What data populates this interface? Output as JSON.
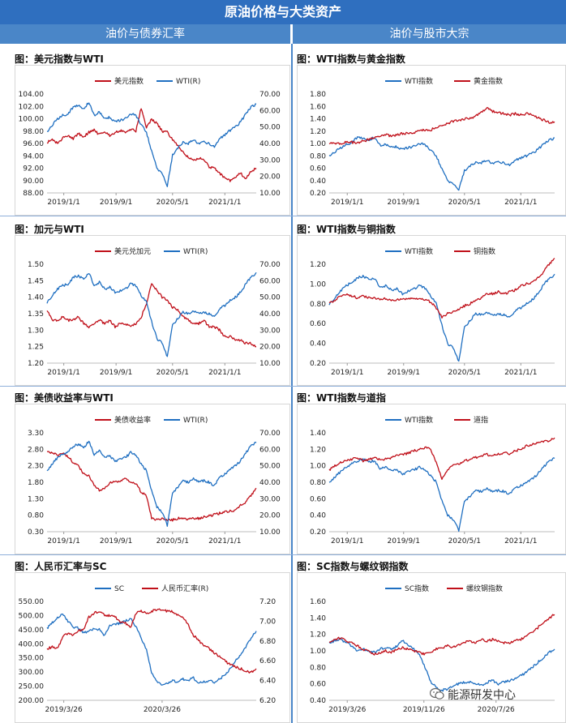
{
  "header": {
    "title": "原油价格与大类资产",
    "col_left": "油价与债券汇率",
    "col_right": "油价与股市大宗"
  },
  "watermark": "能源研发中心",
  "colors": {
    "red": "#c0101a",
    "blue": "#1f6fc1",
    "header": "#2f6fbf",
    "subheader": "#4a86c8"
  },
  "chart_data": [
    {
      "id": "c1",
      "type": "line",
      "title": "图：美元指数与WTI",
      "x_ticks": [
        "2019/1/1",
        "2019/9/1",
        "2020/5/1",
        "2021/1/1"
      ],
      "y_left_ticks": [
        "88.00",
        "90.00",
        "92.00",
        "94.00",
        "96.00",
        "98.00",
        "100.00",
        "102.00",
        "104.00"
      ],
      "y_right_ticks": [
        "10.00",
        "20.00",
        "30.00",
        "40.00",
        "50.00",
        "60.00",
        "70.00"
      ],
      "series": [
        {
          "name": "美元指数",
          "color": "red",
          "axis": "left",
          "values": [
            96.2,
            96.6,
            96.0,
            96.9,
            97.2,
            96.8,
            97.6,
            97.1,
            97.8,
            98.2,
            97.4,
            98.0,
            97.3,
            97.8,
            98.1,
            97.9,
            98.3,
            98.0,
            101.8,
            98.6,
            99.9,
            99.2,
            98.0,
            97.8,
            96.6,
            95.6,
            94.6,
            93.8,
            93.2,
            93.6,
            93.4,
            92.2,
            92.0,
            91.2,
            90.4,
            90.0,
            90.6,
            91.2,
            90.3,
            91.5,
            92.0
          ]
        },
        {
          "name": "WTI(R)",
          "color": "blue",
          "axis": "right",
          "values": [
            47,
            51,
            55,
            57,
            58,
            62,
            63,
            61,
            65,
            57,
            59,
            55,
            56,
            53,
            54,
            55,
            58,
            57,
            51,
            47,
            35,
            25,
            22,
            14,
            33,
            37,
            41,
            40,
            42,
            40,
            41,
            40,
            38,
            43,
            45,
            48,
            50,
            53,
            58,
            62,
            64
          ]
        }
      ],
      "legend": "top",
      "x_range": [
        0,
        40
      ]
    },
    {
      "id": "c2",
      "type": "line",
      "title": "图：WTI指数与黄金指数",
      "x_ticks": [
        "2019/1/1",
        "2019/9/1",
        "2020/5/1",
        "2021/1/1"
      ],
      "y_left_ticks": [
        "0.20",
        "0.40",
        "0.60",
        "0.80",
        "1.00",
        "1.20",
        "1.40",
        "1.60",
        "1.80"
      ],
      "series": [
        {
          "name": "WTI指数",
          "color": "blue",
          "axis": "left",
          "values": [
            0.8,
            0.86,
            0.93,
            0.98,
            1.02,
            1.1,
            1.08,
            1.05,
            1.1,
            0.97,
            0.98,
            0.94,
            0.95,
            0.9,
            0.93,
            0.95,
            1.0,
            0.98,
            0.88,
            0.8,
            0.58,
            0.4,
            0.35,
            0.25,
            0.56,
            0.63,
            0.7,
            0.69,
            0.72,
            0.68,
            0.7,
            0.69,
            0.65,
            0.73,
            0.76,
            0.8,
            0.84,
            0.9,
            0.99,
            1.05,
            1.09
          ]
        },
        {
          "name": "黄金指数",
          "color": "red",
          "axis": "left",
          "values": [
            1.0,
            1.0,
            1.0,
            1.02,
            1.02,
            1.0,
            1.04,
            1.06,
            1.1,
            1.12,
            1.14,
            1.12,
            1.14,
            1.16,
            1.16,
            1.18,
            1.2,
            1.22,
            1.22,
            1.26,
            1.28,
            1.32,
            1.36,
            1.37,
            1.4,
            1.4,
            1.44,
            1.5,
            1.58,
            1.52,
            1.5,
            1.48,
            1.46,
            1.48,
            1.46,
            1.48,
            1.46,
            1.42,
            1.38,
            1.34,
            1.35
          ]
        }
      ],
      "legend": "top",
      "x_range": [
        0,
        40
      ]
    },
    {
      "id": "c3",
      "type": "line",
      "title": "图：加元与WTI",
      "x_ticks": [
        "2019/1/1",
        "2019/9/1",
        "2020/5/1",
        "2021/1/1"
      ],
      "y_left_ticks": [
        "1.20",
        "1.25",
        "1.30",
        "1.35",
        "1.40",
        "1.45",
        "1.50"
      ],
      "y_right_ticks": [
        "10.00",
        "20.00",
        "30.00",
        "40.00",
        "50.00",
        "60.00",
        "70.00"
      ],
      "series": [
        {
          "name": "美元兑加元",
          "color": "red",
          "axis": "left",
          "values": [
            1.36,
            1.33,
            1.33,
            1.34,
            1.33,
            1.33,
            1.34,
            1.32,
            1.31,
            1.32,
            1.33,
            1.32,
            1.33,
            1.31,
            1.32,
            1.32,
            1.31,
            1.32,
            1.34,
            1.38,
            1.44,
            1.42,
            1.4,
            1.39,
            1.37,
            1.36,
            1.34,
            1.33,
            1.32,
            1.32,
            1.33,
            1.31,
            1.31,
            1.3,
            1.28,
            1.28,
            1.27,
            1.27,
            1.26,
            1.26,
            1.25
          ]
        },
        {
          "name": "WTI(R)",
          "color": "blue",
          "axis": "right",
          "values": [
            47,
            51,
            55,
            57,
            58,
            62,
            63,
            61,
            65,
            57,
            59,
            55,
            56,
            53,
            54,
            55,
            58,
            57,
            51,
            47,
            35,
            25,
            22,
            14,
            33,
            37,
            41,
            40,
            42,
            40,
            41,
            40,
            38,
            43,
            45,
            48,
            50,
            53,
            58,
            62,
            65
          ]
        }
      ],
      "legend": "top",
      "x_range": [
        0,
        40
      ]
    },
    {
      "id": "c4",
      "type": "line",
      "title": "图：WTI指数与铜指数",
      "x_ticks": [
        "2019/1/1",
        "2019/9/1",
        "2020/5/1",
        "2021/1/1"
      ],
      "y_left_ticks": [
        "0.20",
        "0.40",
        "0.60",
        "0.80",
        "1.00",
        "1.20"
      ],
      "series": [
        {
          "name": "WTI指数",
          "color": "blue",
          "axis": "left",
          "values": [
            0.8,
            0.86,
            0.93,
            0.98,
            1.02,
            1.06,
            1.08,
            1.05,
            1.06,
            0.97,
            0.98,
            0.94,
            0.95,
            0.9,
            0.93,
            0.95,
            0.98,
            0.96,
            0.88,
            0.8,
            0.58,
            0.4,
            0.35,
            0.22,
            0.56,
            0.63,
            0.7,
            0.69,
            0.72,
            0.68,
            0.7,
            0.69,
            0.66,
            0.73,
            0.76,
            0.8,
            0.84,
            0.9,
            0.99,
            1.05,
            1.1
          ]
        },
        {
          "name": "铜指数",
          "color": "red",
          "axis": "left",
          "values": [
            0.8,
            0.84,
            0.88,
            0.9,
            0.88,
            0.86,
            0.88,
            0.86,
            0.86,
            0.84,
            0.85,
            0.83,
            0.84,
            0.84,
            0.85,
            0.85,
            0.86,
            0.84,
            0.82,
            0.76,
            0.66,
            0.7,
            0.72,
            0.74,
            0.78,
            0.8,
            0.84,
            0.86,
            0.9,
            0.9,
            0.92,
            0.9,
            0.92,
            0.94,
            0.98,
            1.0,
            1.02,
            1.06,
            1.12,
            1.2,
            1.26
          ]
        }
      ],
      "legend": "top",
      "x_range": [
        0,
        40
      ]
    },
    {
      "id": "c5",
      "type": "line",
      "title": "图：美债收益率与WTI",
      "x_ticks": [
        "2019/1/1",
        "2019/9/1",
        "2020/5/1",
        "2021/1/1"
      ],
      "y_left_ticks": [
        "0.30",
        "0.80",
        "1.30",
        "1.80",
        "2.30",
        "2.80",
        "3.30"
      ],
      "y_right_ticks": [
        "10.00",
        "20.00",
        "30.00",
        "40.00",
        "50.00",
        "60.00",
        "70.00"
      ],
      "series": [
        {
          "name": "美债收益率",
          "color": "red",
          "axis": "left",
          "values": [
            2.7,
            2.72,
            2.62,
            2.7,
            2.58,
            2.4,
            2.3,
            2.05,
            2.0,
            1.7,
            1.55,
            1.6,
            1.78,
            1.8,
            1.82,
            1.92,
            1.82,
            1.76,
            1.5,
            1.4,
            0.7,
            0.66,
            0.7,
            0.64,
            0.66,
            0.7,
            0.72,
            0.68,
            0.7,
            0.7,
            0.74,
            0.78,
            0.82,
            0.86,
            0.9,
            0.92,
            0.96,
            1.1,
            1.2,
            1.4,
            1.62
          ]
        },
        {
          "name": "WTI(R)",
          "color": "blue",
          "axis": "right",
          "values": [
            47,
            51,
            55,
            57,
            58,
            62,
            63,
            61,
            65,
            57,
            59,
            55,
            56,
            53,
            54,
            55,
            58,
            57,
            51,
            47,
            35,
            25,
            22,
            14,
            33,
            37,
            41,
            40,
            42,
            40,
            41,
            40,
            38,
            43,
            45,
            48,
            50,
            53,
            58,
            62,
            64
          ]
        }
      ],
      "legend": "top",
      "x_range": [
        0,
        40
      ]
    },
    {
      "id": "c6",
      "type": "line",
      "title": "图：WTI指数与道指",
      "x_ticks": [
        "2019/1/1",
        "2019/9/1",
        "2020/5/1",
        "2021/1/1"
      ],
      "y_left_ticks": [
        "0.20",
        "0.40",
        "0.60",
        "0.80",
        "1.00",
        "1.20",
        "1.40"
      ],
      "series": [
        {
          "name": "WTI指数",
          "color": "blue",
          "axis": "left",
          "values": [
            0.8,
            0.86,
            0.93,
            0.98,
            1.02,
            1.06,
            1.08,
            1.05,
            1.06,
            0.97,
            0.98,
            0.94,
            0.95,
            0.9,
            0.93,
            0.95,
            0.98,
            0.96,
            0.88,
            0.8,
            0.58,
            0.4,
            0.35,
            0.22,
            0.56,
            0.63,
            0.7,
            0.69,
            0.72,
            0.68,
            0.7,
            0.69,
            0.66,
            0.73,
            0.76,
            0.8,
            0.84,
            0.9,
            0.99,
            1.05,
            1.09
          ]
        },
        {
          "name": "道指",
          "color": "red",
          "axis": "left",
          "values": [
            0.95,
            1.0,
            1.04,
            1.06,
            1.08,
            1.1,
            1.06,
            1.08,
            1.1,
            1.08,
            1.08,
            1.1,
            1.12,
            1.14,
            1.15,
            1.18,
            1.2,
            1.22,
            1.2,
            1.04,
            0.85,
            0.96,
            1.0,
            1.02,
            1.06,
            1.08,
            1.1,
            1.12,
            1.14,
            1.12,
            1.14,
            1.16,
            1.15,
            1.18,
            1.2,
            1.24,
            1.26,
            1.28,
            1.3,
            1.3,
            1.34
          ]
        }
      ],
      "legend": "top",
      "x_range": [
        0,
        40
      ]
    },
    {
      "id": "c7",
      "type": "line",
      "title": "图：人民币汇率与SC",
      "x_ticks": [
        "2019/3/26",
        "2020/3/26"
      ],
      "y_left_ticks": [
        "200.00",
        "250.00",
        "300.00",
        "350.00",
        "400.00",
        "450.00",
        "500.00",
        "550.00"
      ],
      "y_right_ticks": [
        "6.20",
        "6.40",
        "6.60",
        "6.80",
        "7.00",
        "7.20"
      ],
      "series": [
        {
          "name": "SC",
          "color": "blue",
          "axis": "left",
          "values": [
            455,
            475,
            492,
            505,
            480,
            460,
            455,
            440,
            445,
            455,
            450,
            430,
            462,
            470,
            472,
            480,
            490,
            460,
            420,
            380,
            300,
            270,
            250,
            260,
            270,
            265,
            275,
            270,
            280,
            260,
            265,
            270,
            265,
            275,
            290,
            310,
            340,
            360,
            390,
            420,
            445
          ]
        },
        {
          "name": "人民币汇率(R)",
          "color": "red",
          "axis": "right",
          "values": [
            6.72,
            6.74,
            6.72,
            6.84,
            6.88,
            6.86,
            6.9,
            6.92,
            7.04,
            7.08,
            7.1,
            7.06,
            7.06,
            7.04,
            7.0,
            6.98,
            6.94,
            7.08,
            7.1,
            7.08,
            7.1,
            7.12,
            7.12,
            7.1,
            7.1,
            7.06,
            7.04,
            6.96,
            6.86,
            6.8,
            6.76,
            6.72,
            6.68,
            6.64,
            6.6,
            6.56,
            6.54,
            6.52,
            6.5,
            6.48,
            6.52
          ]
        }
      ],
      "legend": "top",
      "x_range": [
        0,
        40
      ]
    },
    {
      "id": "c8",
      "type": "line",
      "title": "图：SC指数与螺纹钢指数",
      "x_ticks": [
        "2019/3/26",
        "2019/11/26",
        "2020/7/26"
      ],
      "y_left_ticks": [
        "0.40",
        "0.60",
        "0.80",
        "1.00",
        "1.20",
        "1.40",
        "1.60"
      ],
      "series": [
        {
          "name": "SC指数",
          "color": "blue",
          "axis": "left",
          "values": [
            1.1,
            1.12,
            1.14,
            1.1,
            1.06,
            1.0,
            1.02,
            1.0,
            0.98,
            1.02,
            1.04,
            1.02,
            1.06,
            1.12,
            1.08,
            1.02,
            0.96,
            0.8,
            0.62,
            0.56,
            0.52,
            0.54,
            0.58,
            0.6,
            0.62,
            0.62,
            0.6,
            0.58,
            0.62,
            0.64,
            0.6,
            0.62,
            0.64,
            0.66,
            0.7,
            0.74,
            0.8,
            0.86,
            0.92,
            0.98,
            1.02
          ]
        },
        {
          "name": "螺纹钢指数",
          "color": "red",
          "axis": "left",
          "values": [
            1.1,
            1.14,
            1.16,
            1.12,
            1.1,
            1.06,
            1.02,
            1.0,
            0.96,
            0.98,
            1.0,
            0.98,
            1.02,
            1.04,
            1.02,
            1.0,
            0.98,
            0.96,
            0.98,
            1.02,
            1.04,
            1.06,
            1.04,
            1.08,
            1.1,
            1.12,
            1.1,
            1.14,
            1.12,
            1.14,
            1.12,
            1.1,
            1.1,
            1.12,
            1.14,
            1.18,
            1.22,
            1.28,
            1.34,
            1.4,
            1.44
          ]
        }
      ],
      "legend": "top",
      "x_range": [
        0,
        40
      ]
    }
  ]
}
